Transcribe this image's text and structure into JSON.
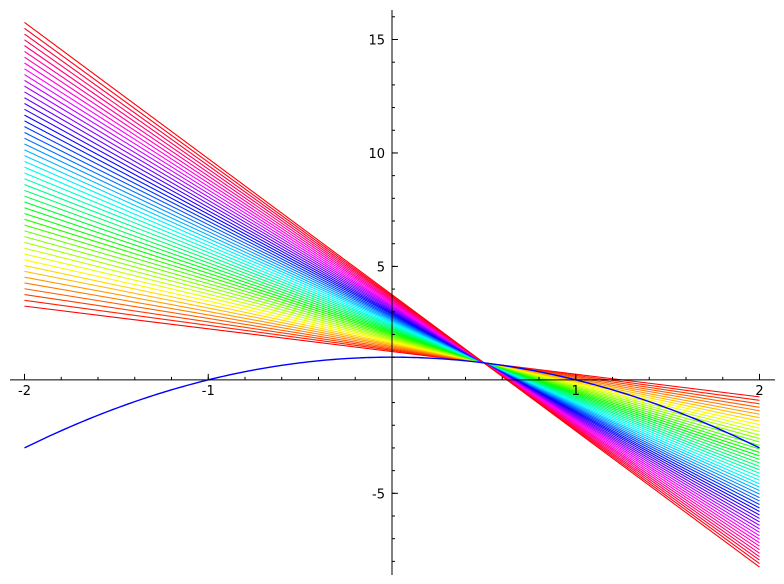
{
  "chart_data": {
    "type": "line",
    "title": "",
    "xlabel": "",
    "ylabel": "",
    "xlim": [
      -2,
      2
    ],
    "ylim": [
      -8.6,
      16.3
    ],
    "grid": false,
    "axes_style": "centered-through-origin",
    "x_ticks": [
      {
        "value": -2,
        "label": "-2"
      },
      {
        "value": -1,
        "label": "-1"
      },
      {
        "value": 1,
        "label": "1"
      },
      {
        "value": 2,
        "label": "2"
      }
    ],
    "y_ticks": [
      {
        "value": -5,
        "label": "-5"
      },
      {
        "value": 5,
        "label": "5"
      },
      {
        "value": 10,
        "label": "10"
      },
      {
        "value": 15,
        "label": "15"
      }
    ],
    "curve": {
      "shape": "parabola",
      "color": "#0000ff",
      "x": [
        -2,
        -1.5,
        -1,
        -0.5,
        0,
        0.5,
        1,
        1.5,
        2
      ],
      "y": [
        -3,
        -1.25,
        0,
        0.75,
        1,
        0.75,
        0,
        -1.25,
        -3
      ]
    },
    "line_family": {
      "shape": "lines through a common point",
      "pivot": [
        0.5,
        0.75
      ],
      "x_range": [
        -2,
        2
      ],
      "count": 50,
      "slope_range": [
        -1,
        -6
      ],
      "color_scheme": "rainbow: red, yellow, green, cyan, blue, magenta, red"
    }
  }
}
